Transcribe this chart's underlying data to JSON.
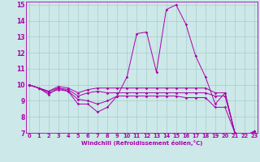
{
  "xlabel": "Windchill (Refroidissement éolien,°C)",
  "background_color": "#cce8e8",
  "line_color": "#aa00aa",
  "grid_color": "#aacccc",
  "spine_color": "#aa00aa",
  "xmin": 0,
  "xmax": 23,
  "ymin": 7,
  "ymax": 15,
  "series": [
    [
      10.0,
      9.8,
      9.4,
      9.8,
      9.6,
      8.8,
      8.8,
      8.3,
      8.6,
      9.3,
      10.5,
      13.2,
      13.3,
      10.8,
      14.7,
      15.0,
      13.8,
      11.8,
      10.5,
      8.8,
      9.5,
      7.0,
      6.8,
      7.1
    ],
    [
      10.0,
      9.8,
      9.6,
      9.9,
      9.8,
      9.5,
      9.7,
      9.8,
      9.8,
      9.8,
      9.8,
      9.8,
      9.8,
      9.8,
      9.8,
      9.8,
      9.8,
      9.8,
      9.8,
      9.5,
      9.5,
      7.0,
      6.8,
      7.1
    ],
    [
      10.0,
      9.8,
      9.6,
      9.8,
      9.7,
      9.3,
      9.5,
      9.6,
      9.5,
      9.5,
      9.5,
      9.5,
      9.5,
      9.5,
      9.5,
      9.5,
      9.5,
      9.5,
      9.5,
      9.3,
      9.3,
      7.0,
      6.8,
      7.1
    ],
    [
      10.0,
      9.8,
      9.5,
      9.7,
      9.6,
      9.1,
      9.0,
      8.8,
      9.0,
      9.3,
      9.3,
      9.3,
      9.3,
      9.3,
      9.3,
      9.3,
      9.2,
      9.2,
      9.2,
      8.6,
      8.6,
      7.0,
      6.8,
      7.1
    ]
  ]
}
